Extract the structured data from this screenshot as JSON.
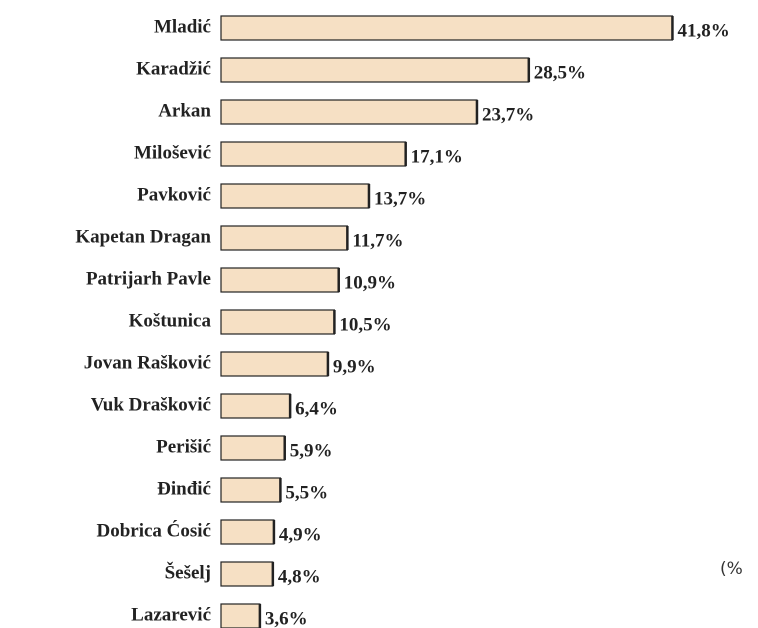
{
  "chart_data": {
    "type": "bar",
    "orientation": "horizontal",
    "categories": [
      "Mladić",
      "Karadžić",
      "Arkan",
      "Milošević",
      "Pavković",
      "Kapetan Dragan",
      "Patrijarh Pavle",
      "Koštunica",
      "Jovan Rašković",
      "Vuk Drašković",
      "Perišić",
      "Đinđić",
      "Dobrica Ćosić",
      "Šešelj",
      "Lazarević"
    ],
    "values": [
      41.8,
      28.5,
      23.7,
      17.1,
      13.7,
      11.7,
      10.9,
      10.5,
      9.9,
      6.4,
      5.9,
      5.5,
      4.9,
      4.8,
      3.6
    ],
    "value_labels": [
      "41,8%",
      "28,5%",
      "23,7%",
      "17,1%",
      "13,7%",
      "11,7%",
      "10,9%",
      "10,5%",
      "9,9%",
      "6,4%",
      "5,9%",
      "5,5%",
      "4,9%",
      "4,8%",
      "3,6%"
    ],
    "color": "#f6e0c4",
    "annotation": "(%"
  }
}
